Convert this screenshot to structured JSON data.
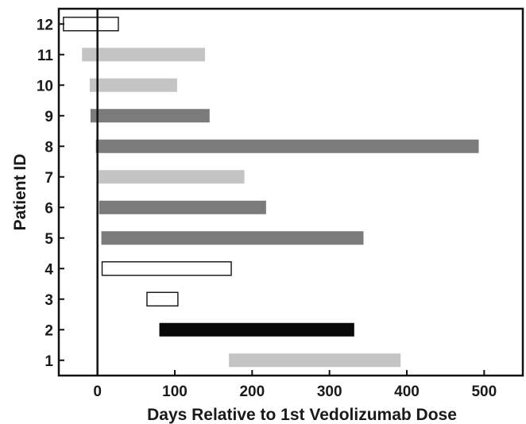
{
  "chart_data": {
    "type": "bar",
    "orientation": "horizontal",
    "title": "",
    "xlabel": "Days Relative to 1st Vedolizumab Dose",
    "ylabel": "Patient ID",
    "xlim": [
      -50,
      550
    ],
    "ylim": [
      0.5,
      12.5
    ],
    "x_ticks": [
      0,
      100,
      200,
      300,
      400,
      500
    ],
    "y_ticks": [
      1,
      2,
      3,
      4,
      5,
      6,
      7,
      8,
      9,
      10,
      11,
      12
    ],
    "reference_line_x": 0,
    "grid": false,
    "legend": "none",
    "bars": [
      {
        "patient": 1,
        "start": 170,
        "end": 392,
        "fill": "#c4c4c4"
      },
      {
        "patient": 2,
        "start": 80,
        "end": 332,
        "fill": "#0a0a0a"
      },
      {
        "patient": 3,
        "start": 64,
        "end": 104,
        "fill": "#ffffff"
      },
      {
        "patient": 4,
        "start": 6,
        "end": 173,
        "fill": "#ffffff"
      },
      {
        "patient": 5,
        "start": 5,
        "end": 344,
        "fill": "#7b7b7b"
      },
      {
        "patient": 6,
        "start": 2,
        "end": 218,
        "fill": "#7b7b7b"
      },
      {
        "patient": 7,
        "start": 0,
        "end": 190,
        "fill": "#c4c4c4"
      },
      {
        "patient": 8,
        "start": -2,
        "end": 493,
        "fill": "#7b7b7b"
      },
      {
        "patient": 9,
        "start": -9,
        "end": 145,
        "fill": "#7b7b7b"
      },
      {
        "patient": 10,
        "start": -10,
        "end": 103,
        "fill": "#c4c4c4"
      },
      {
        "patient": 11,
        "start": -20,
        "end": 139,
        "fill": "#c4c4c4"
      },
      {
        "patient": 12,
        "start": -44,
        "end": 27,
        "fill": "#ffffff"
      }
    ]
  }
}
